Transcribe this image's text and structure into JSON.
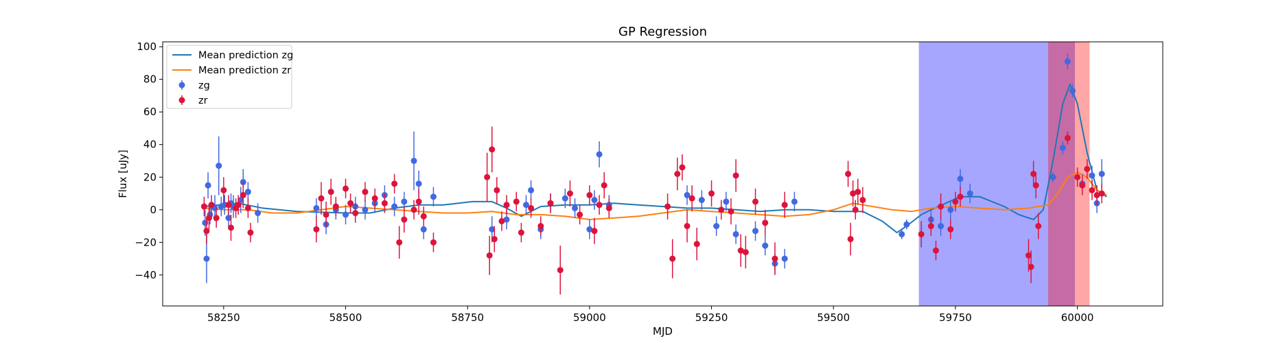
{
  "chart_data": {
    "type": "scatter",
    "title": "GP Regression",
    "xlabel": "MJD",
    "ylabel": "Flux [uJy]",
    "xlim": [
      58125,
      60175
    ],
    "ylim": [
      -59,
      103
    ],
    "xticks": [
      58250,
      58500,
      58750,
      59000,
      59250,
      59500,
      59750,
      60000
    ],
    "yticks": [
      -40,
      -20,
      0,
      20,
      40,
      60,
      80,
      100
    ],
    "grid": false,
    "legend": {
      "placement": "top-left",
      "entries": [
        {
          "label": "Mean prediction zg",
          "kind": "line",
          "color": "#1f77b4"
        },
        {
          "label": "Mean prediction zr",
          "kind": "line",
          "color": "#ff7f0e"
        },
        {
          "label": "zg",
          "kind": "errorbar",
          "color": "#4169e1"
        },
        {
          "label": "zr",
          "kind": "errorbar",
          "color": "#dc143c"
        }
      ]
    },
    "shaded_regions": [
      {
        "x0": 59675,
        "x1": 59995,
        "color": "#0000ff",
        "opacity": 0.35
      },
      {
        "x0": 59940,
        "x1": 60025,
        "color": "#ff0000",
        "opacity": 0.35
      }
    ],
    "series": [
      {
        "name": "Mean prediction zg",
        "kind": "line",
        "color": "#1f77b4",
        "x": [
          58210,
          58240,
          58280,
          58330,
          58400,
          58500,
          58550,
          58600,
          58650,
          58700,
          58760,
          58800,
          58830,
          58860,
          58900,
          58950,
          59000,
          59050,
          59100,
          59150,
          59200,
          59250,
          59300,
          59350,
          59400,
          59450,
          59500,
          59560,
          59600,
          59630,
          59650,
          59680,
          59700,
          59730,
          59760,
          59800,
          59850,
          59880,
          59910,
          59930,
          59950,
          59970,
          59985,
          60000,
          60020,
          60040,
          60060
        ],
        "y": [
          2,
          3,
          4,
          1,
          -1,
          -2,
          -2,
          1,
          3,
          3,
          5,
          5,
          1,
          -4,
          2,
          3,
          3,
          4,
          3,
          2,
          1,
          1,
          0,
          -1,
          0,
          0,
          -1,
          -1,
          -7,
          -14,
          -10,
          -3,
          0,
          4,
          8,
          8,
          2,
          -3,
          -6,
          0,
          30,
          65,
          77,
          65,
          35,
          12,
          8
        ]
      },
      {
        "name": "Mean prediction zr",
        "kind": "line",
        "color": "#ff7f0e",
        "x": [
          58210,
          58250,
          58300,
          58350,
          58400,
          58450,
          58500,
          58550,
          58600,
          58650,
          58700,
          58750,
          58800,
          58850,
          58900,
          58950,
          59000,
          59050,
          59100,
          59150,
          59200,
          59250,
          59300,
          59350,
          59400,
          59450,
          59500,
          59540,
          59580,
          59620,
          59660,
          59700,
          59750,
          59800,
          59850,
          59900,
          59940,
          59960,
          59980,
          60000,
          60020,
          60040,
          60060
        ],
        "y": [
          1,
          0,
          0,
          -2,
          -2,
          0,
          2,
          1,
          0,
          -1,
          -2,
          -2,
          -1,
          -3,
          -3,
          -4,
          -6,
          -5,
          -4,
          -2,
          0,
          -1,
          -2,
          -3,
          -4,
          -3,
          0,
          4,
          2,
          0,
          -1,
          1,
          2,
          1,
          0,
          1,
          3,
          10,
          20,
          23,
          20,
          12,
          9
        ]
      },
      {
        "name": "zg",
        "kind": "errorbar",
        "color": "#4169e1",
        "x": [
          58212,
          58215,
          58218,
          58222,
          58232,
          58240,
          58245,
          58252,
          58260,
          58265,
          58270,
          58285,
          58290,
          58300,
          58320,
          58440,
          58460,
          58480,
          58500,
          58520,
          58540,
          58560,
          58580,
          58600,
          58620,
          58640,
          58650,
          58660,
          58680,
          58800,
          58830,
          58870,
          58880,
          58900,
          58920,
          58950,
          58970,
          59000,
          59010,
          59020,
          59040,
          59200,
          59230,
          59260,
          59280,
          59300,
          59340,
          59360,
          59380,
          59400,
          59420,
          59640,
          59650,
          59700,
          59720,
          59740,
          59760,
          59780,
          59950,
          59970,
          59980,
          59990,
          60010,
          60030,
          60040,
          60050
        ],
        "y": [
          -8,
          -30,
          15,
          -3,
          1,
          27,
          2,
          3,
          -5,
          4,
          2,
          6,
          17,
          11,
          -2,
          1,
          -9,
          0,
          -3,
          2,
          0,
          4,
          9,
          2,
          5,
          30,
          16,
          -12,
          8,
          -12,
          -6,
          3,
          12,
          -12,
          4,
          7,
          1,
          -12,
          6,
          34,
          3,
          9,
          6,
          -10,
          5,
          -15,
          -13,
          -22,
          -33,
          -30,
          5,
          -15,
          -9,
          -6,
          -10,
          0,
          19,
          10,
          20,
          38,
          91,
          73,
          16,
          21,
          4,
          22
        ],
        "err": [
          8,
          15,
          8,
          6,
          8,
          18,
          6,
          6,
          6,
          6,
          7,
          8,
          8,
          6,
          6,
          6,
          6,
          6,
          6,
          6,
          6,
          6,
          6,
          6,
          6,
          18,
          8,
          6,
          6,
          8,
          6,
          6,
          6,
          6,
          6,
          6,
          6,
          6,
          6,
          8,
          6,
          6,
          6,
          6,
          6,
          6,
          6,
          6,
          6,
          6,
          6,
          3,
          3,
          6,
          6,
          6,
          6,
          6,
          3,
          4,
          5,
          4,
          6,
          6,
          6,
          9
        ]
      },
      {
        "name": "zr",
        "kind": "errorbar",
        "color": "#dc143c",
        "x": [
          58210,
          58215,
          58220,
          58225,
          58235,
          58250,
          58260,
          58265,
          58275,
          58280,
          58290,
          58300,
          58305,
          58440,
          58450,
          58460,
          58470,
          58480,
          58500,
          58510,
          58520,
          58540,
          58560,
          58580,
          58600,
          58610,
          58620,
          58640,
          58650,
          58660,
          58680,
          58790,
          58795,
          58800,
          58805,
          58810,
          58820,
          58830,
          58850,
          58860,
          58880,
          58900,
          58920,
          58940,
          58960,
          58980,
          59000,
          59010,
          59020,
          59030,
          59040,
          59160,
          59170,
          59180,
          59190,
          59200,
          59210,
          59220,
          59250,
          59270,
          59290,
          59300,
          59310,
          59320,
          59340,
          59360,
          59380,
          59400,
          59530,
          59535,
          59540,
          59545,
          59550,
          59560,
          59680,
          59700,
          59710,
          59720,
          59740,
          59750,
          59760,
          59900,
          59905,
          59910,
          59915,
          59920,
          59980,
          60000,
          60010,
          60020,
          60030,
          60040,
          60050
        ],
        "y": [
          2,
          -13,
          -5,
          3,
          -5,
          12,
          3,
          -11,
          1,
          3,
          9,
          1,
          -14,
          -12,
          7,
          -3,
          11,
          2,
          13,
          4,
          -2,
          11,
          7,
          4,
          16,
          -20,
          -6,
          0,
          5,
          -4,
          -20,
          20,
          -28,
          37,
          -18,
          12,
          -7,
          3,
          5,
          -14,
          1,
          -10,
          4,
          -37,
          10,
          -3,
          9,
          -13,
          3,
          15,
          1,
          2,
          -30,
          22,
          26,
          -10,
          7,
          -21,
          10,
          0,
          -1,
          21,
          -25,
          -26,
          5,
          -8,
          -30,
          3,
          22,
          -18,
          10,
          0,
          11,
          6,
          -15,
          -10,
          -25,
          2,
          -12,
          5,
          8,
          -28,
          -35,
          22,
          15,
          -10,
          44,
          20,
          15,
          25,
          12,
          9,
          10
        ],
        "err": [
          6,
          8,
          7,
          6,
          6,
          8,
          6,
          8,
          6,
          6,
          8,
          6,
          6,
          8,
          10,
          8,
          8,
          6,
          6,
          6,
          6,
          6,
          6,
          6,
          6,
          10,
          8,
          6,
          8,
          6,
          6,
          15,
          12,
          14,
          8,
          8,
          6,
          6,
          6,
          6,
          6,
          6,
          6,
          15,
          8,
          6,
          6,
          8,
          6,
          8,
          6,
          8,
          12,
          10,
          8,
          10,
          8,
          10,
          8,
          6,
          8,
          10,
          10,
          10,
          8,
          8,
          10,
          8,
          8,
          10,
          8,
          6,
          8,
          8,
          8,
          6,
          6,
          8,
          6,
          6,
          6,
          10,
          10,
          8,
          8,
          8,
          4,
          6,
          6,
          6,
          6,
          6,
          6
        ]
      }
    ]
  }
}
